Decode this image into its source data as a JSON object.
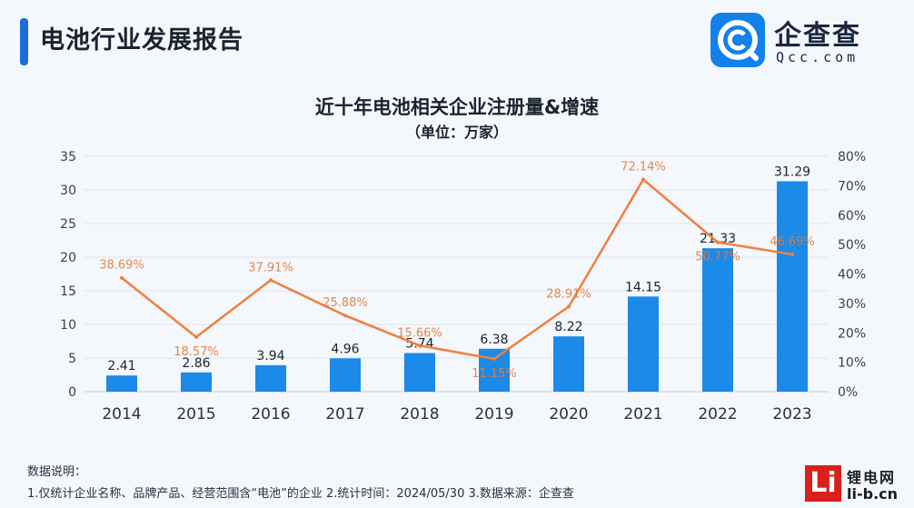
{
  "header": {
    "report_title": "电池行业发展报告"
  },
  "brand": {
    "name_cn": "企查查",
    "name_en": "Qcc.com",
    "color": "#1480ea"
  },
  "chart_data": {
    "type": "bar",
    "title": "近十年电池相关企业注册量&增速",
    "subtitle": "（单位：万家）",
    "categories": [
      "2014",
      "2015",
      "2016",
      "2017",
      "2018",
      "2019",
      "2020",
      "2021",
      "2022",
      "2023"
    ],
    "series": [
      {
        "type": "bar",
        "axis": "left",
        "values": [
          2.41,
          2.86,
          3.94,
          4.96,
          5.74,
          6.38,
          8.22,
          14.15,
          21.33,
          31.29
        ],
        "labels": [
          "2.41",
          "2.86",
          "3.94",
          "4.96",
          "5.74",
          "6.38",
          "8.22",
          "14.15",
          "21.33",
          "31.29"
        ],
        "color": "#1b8ae8"
      },
      {
        "type": "line",
        "axis": "right",
        "values": [
          38.69,
          18.57,
          37.91,
          25.88,
          15.66,
          11.15,
          28.91,
          72.14,
          50.77,
          46.69
        ],
        "labels": [
          "38.69%",
          "18.57%",
          "37.91%",
          "25.88%",
          "15.66%",
          "11.15%",
          "28.91%",
          "72.14%",
          "50.77%",
          "46.69%"
        ],
        "color": "#ef7f3d"
      }
    ],
    "y_left": {
      "min": 0,
      "max": 35,
      "ticks": [
        "0",
        "5",
        "10",
        "15",
        "20",
        "25",
        "30",
        "35"
      ]
    },
    "y_right": {
      "min": 0,
      "max": 80,
      "ticks": [
        "0%",
        "10%",
        "20%",
        "30%",
        "40%",
        "50%",
        "60%",
        "70%",
        "80%"
      ]
    },
    "grid": true,
    "legend": "none"
  },
  "notes": {
    "heading": "数据说明：",
    "text": "1.仅统计企业名称、品牌产品、经营范围含“电池”的企业   2.统计时间：2024/05/30   3.数据来源：企查查"
  },
  "site": {
    "mark": "Li",
    "name_cn": "锂电网",
    "name_en": "li-b.cn"
  }
}
